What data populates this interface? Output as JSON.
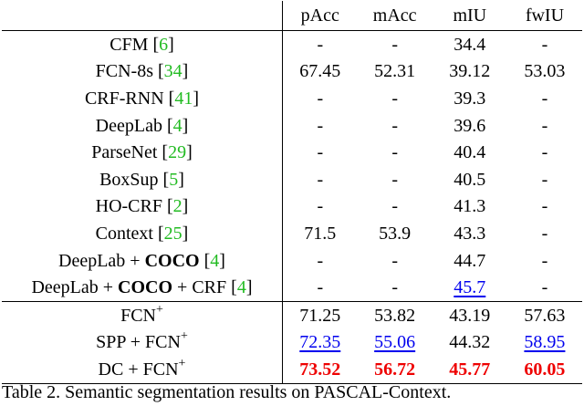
{
  "table": {
    "columns": [
      "",
      "pAcc",
      "mAcc",
      "mIU",
      "fwIU"
    ],
    "rows": [
      {
        "method": "CFM",
        "ref": "6",
        "pAcc": "-",
        "mAcc": "-",
        "mIU": "34.4",
        "fwIU": "-"
      },
      {
        "method": "FCN-8s",
        "ref": "34",
        "pAcc": "67.45",
        "mAcc": "52.31",
        "mIU": "39.12",
        "fwIU": "53.03"
      },
      {
        "method": "CRF-RNN",
        "ref": "41",
        "pAcc": "-",
        "mAcc": "-",
        "mIU": "39.3",
        "fwIU": "-"
      },
      {
        "method": "DeepLab",
        "ref": "4",
        "pAcc": "-",
        "mAcc": "-",
        "mIU": "39.6",
        "fwIU": "-"
      },
      {
        "method": "ParseNet",
        "ref": "29",
        "pAcc": "-",
        "mAcc": "-",
        "mIU": "40.4",
        "fwIU": "-"
      },
      {
        "method": "BoxSup",
        "ref": "5",
        "pAcc": "-",
        "mAcc": "-",
        "mIU": "40.5",
        "fwIU": "-"
      },
      {
        "method": "HO-CRF",
        "ref": "2",
        "pAcc": "-",
        "mAcc": "-",
        "mIU": "41.3",
        "fwIU": "-"
      },
      {
        "method": "Context",
        "ref": "25",
        "pAcc": "71.5",
        "mAcc": "53.9",
        "mIU": "43.3",
        "fwIU": "-"
      },
      {
        "method_pre": "DeepLab + ",
        "method_bold": "COCO",
        "method_post": "",
        "ref": "4",
        "pAcc": "-",
        "mAcc": "-",
        "mIU": "44.7",
        "fwIU": "-"
      },
      {
        "method_pre": "DeepLab + ",
        "method_bold": "COCO",
        "method_post": " + CRF",
        "ref": "4",
        "pAcc": "-",
        "mAcc": "-",
        "mIU": "45.7",
        "fwIU": "-"
      },
      {
        "method_base": "FCN",
        "method_sup": "+",
        "pAcc": "71.25",
        "mAcc": "53.82",
        "mIU": "43.19",
        "fwIU": "57.63"
      },
      {
        "method_base": "SPP + FCN",
        "method_sup": "+",
        "pAcc": "72.35",
        "mAcc": "55.06",
        "mIU": "44.32",
        "fwIU": "58.95"
      },
      {
        "method_base": "DC + FCN",
        "method_sup": "+",
        "pAcc": "73.52",
        "mAcc": "56.72",
        "mIU": "45.77",
        "fwIU": "60.05"
      }
    ]
  },
  "caption": "Table 2. Semantic segmentation results on PASCAL-Context.",
  "colors": {
    "reference": "#22bb22",
    "second_best": "#0000ee",
    "best": "#ee0000"
  }
}
